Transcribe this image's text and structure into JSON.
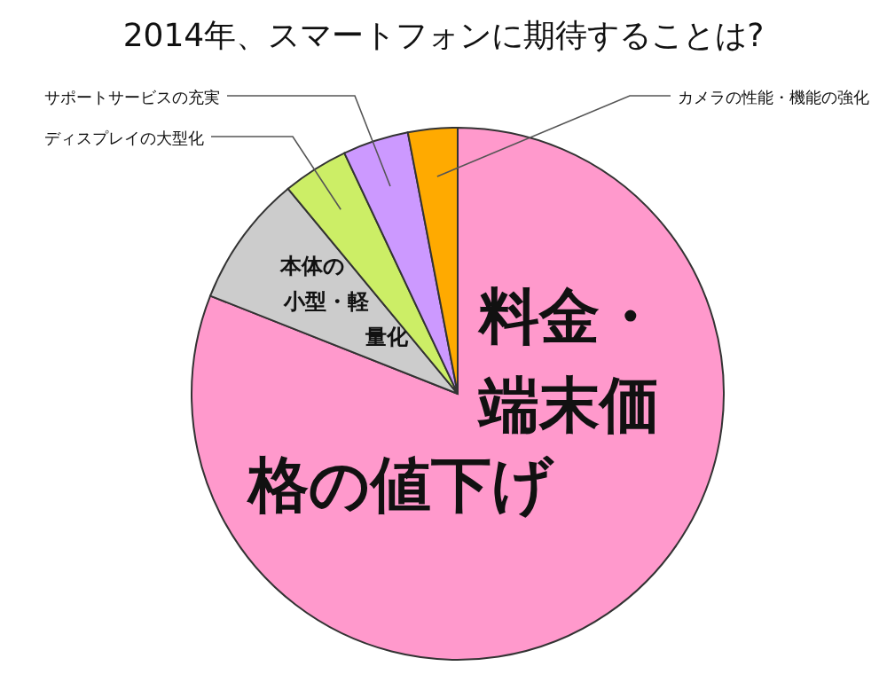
{
  "chart_data": {
    "type": "pie",
    "title": "2014年、スマートフォンに期待することは?",
    "categories": [
      "料金・端末価格の値下げ",
      "本体の小型・軽量化",
      "ディスプレイの大型化",
      "サポートサービスの充実",
      "カメラの性能・機能の強化"
    ],
    "values": [
      81,
      8,
      4,
      4,
      3
    ],
    "colors": [
      "#ff99cc",
      "#cccccc",
      "#ccee66",
      "#cc99ff",
      "#ffaa00"
    ]
  }
}
